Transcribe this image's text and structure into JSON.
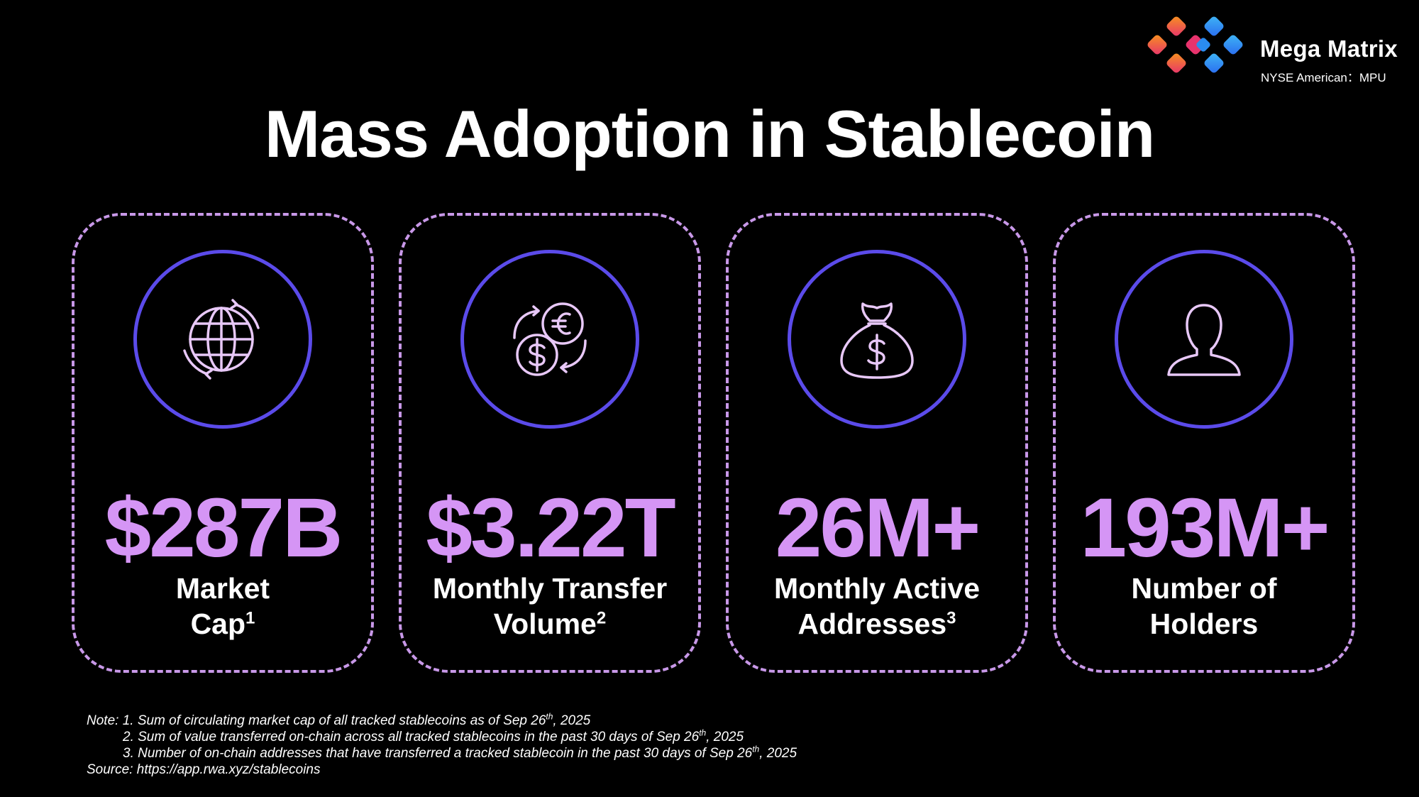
{
  "brand": {
    "name": "Mega Matrix",
    "ticker": "NYSE American：MPU",
    "logo_icon": "mega-matrix-logo",
    "colors": {
      "orange": "#f05a28",
      "pink": "#e8336d",
      "blue": "#2a8cf0",
      "light_blue": "#3fb6f5"
    }
  },
  "title": "Mass Adoption in Stablecoin",
  "accent_colors": {
    "value": "#d595f5",
    "card_border": "#c898e8",
    "icon_ring": "#5b4bea"
  },
  "cards": [
    {
      "icon": "globe-icon",
      "value": "$287B",
      "label_line1": "Market",
      "label_line2": "Cap",
      "sup": "1"
    },
    {
      "icon": "currency-exchange-icon",
      "value": "$3.22T",
      "label_line1": "Monthly Transfer",
      "label_line2": "Volume",
      "sup": "2"
    },
    {
      "icon": "money-bag-icon",
      "value": "26M+",
      "label_line1": "Monthly Active",
      "label_line2": "Addresses",
      "sup": "3"
    },
    {
      "icon": "user-icon",
      "value": "193M+",
      "label_line1": "Number of",
      "label_line2": "Holders",
      "sup": ""
    }
  ],
  "notes": {
    "n1_pre": "Note: 1. Sum of circulating market cap of all tracked stablecoins as of Sep 26",
    "n1_sup": "th",
    "n1_post": ", 2025",
    "n2_pre": "2. Sum of value transferred on-chain across all tracked stablecoins in the past 30 days of Sep 26",
    "n2_sup": "th",
    "n2_post": ", 2025",
    "n3_pre": "3. Number of on-chain addresses that have transferred a tracked stablecoin in the past 30 days of Sep 26",
    "n3_sup": "th",
    "n3_post": ", 2025",
    "source": "Source: https://app.rwa.xyz/stablecoins"
  }
}
